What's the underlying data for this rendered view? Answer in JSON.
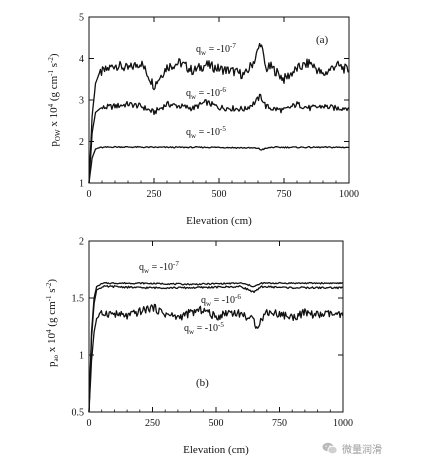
{
  "charts": [
    {
      "panel": "(a)",
      "xlabel": "Elevation (cm)",
      "ylabel_main": "p",
      "ylabel_sub": "OW",
      "ylabel_rest_a": " x 10",
      "ylabel_exp": "4",
      "ylabel_rest_b": " (g cm",
      "ylabel_exp2": "-1",
      "ylabel_rest_c": " s",
      "ylabel_exp3": "-2",
      "ylabel_rest_d": ")",
      "xticks": [
        "0",
        "250",
        "500",
        "750",
        "1000"
      ],
      "yticks": [
        "1",
        "2",
        "3",
        "4",
        "5"
      ],
      "labels": [
        {
          "q": "q",
          "sub": "w",
          "text": " = -10",
          "exp": "-7"
        },
        {
          "q": "q",
          "sub": "w",
          "text": " = -10",
          "exp": "-6"
        },
        {
          "q": "q",
          "sub": "w",
          "text": " = -10",
          "exp": "-5"
        }
      ]
    },
    {
      "panel": "(b)",
      "xlabel": "Elevation (cm)",
      "ylabel_main": "p",
      "ylabel_sub": "ao",
      "ylabel_rest_a": " x 10",
      "ylabel_exp": "4",
      "ylabel_rest_b": " (g cm",
      "ylabel_exp2": "-1",
      "ylabel_rest_c": " s",
      "ylabel_exp3": "-2",
      "ylabel_rest_d": ")",
      "xticks": [
        "0",
        "250",
        "500",
        "750",
        "1000"
      ],
      "yticks": [
        "0.5",
        "1",
        "1.5",
        "2"
      ],
      "labels": [
        {
          "q": "q",
          "sub": "w",
          "text": " = -10",
          "exp": "-7"
        },
        {
          "q": "q",
          "sub": "w",
          "text": " = -10",
          "exp": "-6"
        },
        {
          "q": "q",
          "sub": "w",
          "text": " = -10",
          "exp": "-5"
        }
      ]
    }
  ],
  "watermark": {
    "text": "微量润滑",
    "icon": "wechat-icon"
  },
  "chart_data": [
    {
      "type": "line",
      "xlim": [
        0,
        1000
      ],
      "ylim": [
        1,
        5
      ],
      "grid": false,
      "series": [
        {
          "name": "q_w = -10^-7",
          "x": [
            0,
            12,
            25,
            40,
            60,
            100,
            150,
            200,
            250,
            300,
            350,
            400,
            450,
            500,
            550,
            600,
            640,
            660,
            680,
            700,
            750,
            800,
            850,
            900,
            950,
            1000
          ],
          "y": [
            1.0,
            2.6,
            3.4,
            3.65,
            3.7,
            3.85,
            3.75,
            3.9,
            3.35,
            3.8,
            3.9,
            3.7,
            3.85,
            3.75,
            3.7,
            3.6,
            4.0,
            4.4,
            3.75,
            3.8,
            3.5,
            3.75,
            3.9,
            3.6,
            3.85,
            3.7
          ]
        },
        {
          "name": "q_w = -10^-6",
          "x": [
            0,
            12,
            25,
            40,
            60,
            100,
            150,
            200,
            250,
            300,
            350,
            400,
            450,
            500,
            550,
            600,
            640,
            660,
            680,
            700,
            750,
            800,
            850,
            900,
            950,
            1000
          ],
          "y": [
            1.0,
            2.2,
            2.7,
            2.78,
            2.82,
            2.85,
            2.9,
            2.85,
            2.7,
            2.9,
            2.85,
            2.8,
            2.95,
            2.82,
            2.8,
            2.78,
            2.95,
            3.1,
            2.85,
            2.8,
            2.75,
            2.9,
            2.8,
            2.85,
            2.8,
            2.82
          ]
        },
        {
          "name": "q_w = -10^-5",
          "x": [
            0,
            12,
            25,
            40,
            60,
            100,
            250,
            500,
            650,
            660,
            700,
            1000
          ],
          "y": [
            1.0,
            1.6,
            1.82,
            1.85,
            1.86,
            1.87,
            1.86,
            1.86,
            1.84,
            1.8,
            1.86,
            1.86
          ]
        }
      ]
    },
    {
      "type": "line",
      "xlim": [
        0,
        1000
      ],
      "ylim": [
        0.5,
        2
      ],
      "grid": false,
      "series": [
        {
          "name": "q_w = -10^-7",
          "x": [
            0,
            10,
            20,
            30,
            45,
            60,
            100,
            200,
            400,
            600,
            650,
            680,
            800,
            1000
          ],
          "y": [
            0.5,
            1.2,
            1.5,
            1.6,
            1.62,
            1.63,
            1.63,
            1.63,
            1.62,
            1.63,
            1.6,
            1.63,
            1.63,
            1.63
          ]
        },
        {
          "name": "q_w = -10^-6",
          "x": [
            0,
            10,
            20,
            30,
            45,
            60,
            100,
            200,
            400,
            600,
            650,
            680,
            800,
            1000
          ],
          "y": [
            0.5,
            1.15,
            1.45,
            1.57,
            1.59,
            1.6,
            1.6,
            1.59,
            1.59,
            1.6,
            1.55,
            1.6,
            1.59,
            1.59
          ]
        },
        {
          "name": "q_w = -10^-5",
          "x": [
            0,
            10,
            20,
            30,
            45,
            60,
            100,
            150,
            200,
            250,
            300,
            350,
            400,
            450,
            500,
            550,
            600,
            650,
            660,
            700,
            750,
            800,
            850,
            900,
            950,
            1000
          ],
          "y": [
            0.5,
            0.95,
            1.2,
            1.32,
            1.35,
            1.37,
            1.36,
            1.34,
            1.38,
            1.42,
            1.36,
            1.33,
            1.37,
            1.4,
            1.33,
            1.38,
            1.36,
            1.3,
            1.25,
            1.38,
            1.36,
            1.33,
            1.37,
            1.35,
            1.36,
            1.34
          ]
        }
      ]
    }
  ]
}
